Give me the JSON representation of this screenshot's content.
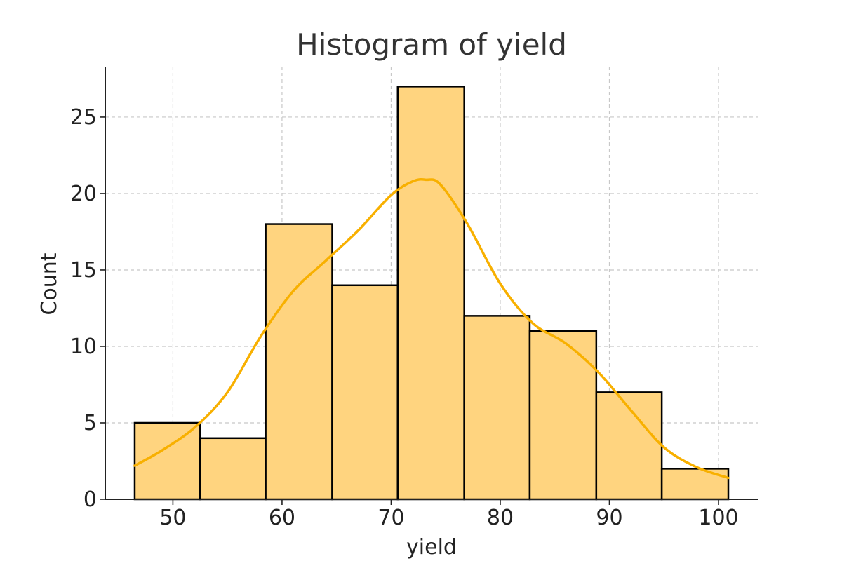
{
  "chart_data": {
    "type": "bar",
    "title": "Histogram of yield",
    "xlabel": "yield",
    "ylabel": "Count",
    "bins": [
      {
        "start": 46.5,
        "end": 52.5,
        "count": 5
      },
      {
        "start": 52.5,
        "end": 58.5,
        "count": 4
      },
      {
        "start": 58.5,
        "end": 64.6,
        "count": 18
      },
      {
        "start": 64.6,
        "end": 70.6,
        "count": 14
      },
      {
        "start": 70.6,
        "end": 76.7,
        "count": 27
      },
      {
        "start": 76.7,
        "end": 82.7,
        "count": 12
      },
      {
        "start": 82.7,
        "end": 88.8,
        "count": 11
      },
      {
        "start": 88.8,
        "end": 94.8,
        "count": 7
      },
      {
        "start": 94.8,
        "end": 100.9,
        "count": 2
      }
    ],
    "kde": {
      "x": [
        46.5,
        49,
        52,
        55,
        58,
        61,
        64,
        67,
        70,
        72,
        73.2,
        74.5,
        77,
        80,
        83,
        86,
        89,
        92,
        95,
        98,
        100.9
      ],
      "y": [
        2.2,
        3.2,
        4.7,
        7.0,
        10.6,
        13.6,
        15.6,
        17.6,
        19.9,
        20.8,
        20.9,
        20.6,
        18.0,
        14.1,
        11.5,
        10.2,
        8.3,
        5.8,
        3.4,
        2.1,
        1.4
      ]
    },
    "xlim": [
      43.8,
      103.6
    ],
    "ylim": [
      0,
      28.3
    ],
    "xticks": [
      50,
      60,
      70,
      80,
      90,
      100
    ],
    "yticks": [
      0,
      5,
      10,
      15,
      20,
      25
    ],
    "grid": true,
    "bar_color": "#FFD47F",
    "kde_color": "#F8B000",
    "edge_color": "#000000"
  }
}
